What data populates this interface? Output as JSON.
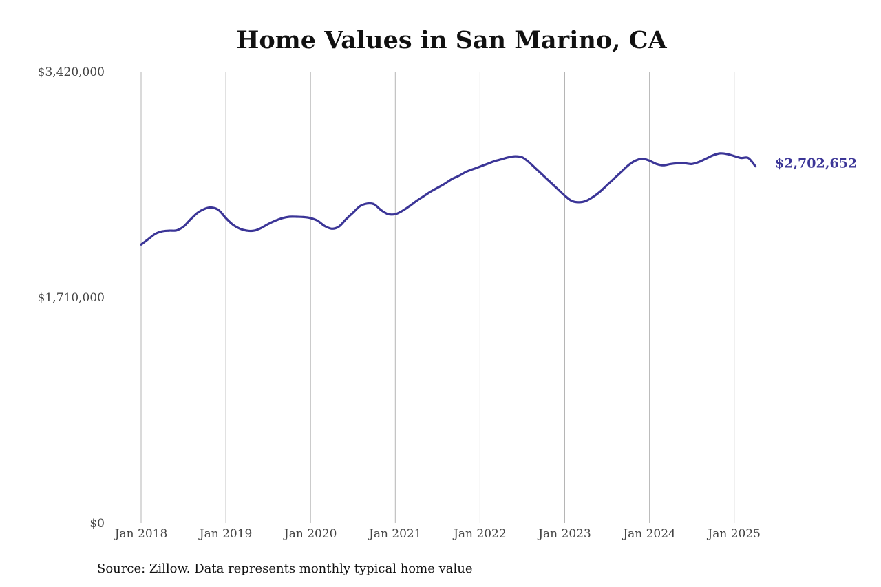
{
  "chart_data": {
    "type": "line",
    "title": "Home Values in San Marino, CA",
    "xlabel": "",
    "ylabel": "",
    "ylim": [
      0,
      3420000
    ],
    "y_ticks": [
      "$0",
      "$1,710,000",
      "$3,420,000"
    ],
    "y_tick_values": [
      0,
      1710000,
      3420000
    ],
    "x_ticks": [
      "Jan 2018",
      "Jan 2019",
      "Jan 2020",
      "Jan 2021",
      "Jan 2022",
      "Jan 2023",
      "Jan 2024",
      "Jan 2025"
    ],
    "x_range": [
      "2018-01",
      "2025-04"
    ],
    "grid": "vertical",
    "line_color": "#3b3597",
    "end_label": "$2,702,652",
    "series": [
      {
        "x": [
          "2018-01",
          "2018-02",
          "2018-03",
          "2018-04",
          "2018-05",
          "2018-06",
          "2018-07",
          "2018-08",
          "2018-09",
          "2018-10",
          "2018-11",
          "2018-12",
          "2019-01",
          "2019-02",
          "2019-03",
          "2019-04",
          "2019-05",
          "2019-06",
          "2019-07",
          "2019-08",
          "2019-09",
          "2019-10",
          "2019-11",
          "2019-12",
          "2020-01",
          "2020-02",
          "2020-03",
          "2020-04",
          "2020-05",
          "2020-06",
          "2020-07",
          "2020-08",
          "2020-09",
          "2020-10",
          "2020-11",
          "2020-12",
          "2021-01",
          "2021-02",
          "2021-03",
          "2021-04",
          "2021-05",
          "2021-06",
          "2021-07",
          "2021-08",
          "2021-09",
          "2021-10",
          "2021-11",
          "2021-12",
          "2022-01",
          "2022-02",
          "2022-03",
          "2022-04",
          "2022-05",
          "2022-06",
          "2022-07",
          "2022-08",
          "2022-09",
          "2022-10",
          "2022-11",
          "2022-12",
          "2023-01",
          "2023-02",
          "2023-03",
          "2023-04",
          "2023-05",
          "2023-06",
          "2023-07",
          "2023-08",
          "2023-09",
          "2023-10",
          "2023-11",
          "2023-12",
          "2024-01",
          "2024-02",
          "2024-03",
          "2024-04",
          "2024-05",
          "2024-06",
          "2024-07",
          "2024-08",
          "2024-09",
          "2024-10",
          "2024-11",
          "2024-12",
          "2025-01",
          "2025-02",
          "2025-03",
          "2025-04"
        ],
        "values": [
          2110000,
          2150000,
          2190000,
          2210000,
          2215000,
          2217000,
          2245000,
          2300000,
          2350000,
          2380000,
          2390000,
          2370000,
          2310000,
          2260000,
          2230000,
          2215000,
          2215000,
          2235000,
          2265000,
          2290000,
          2310000,
          2320000,
          2320000,
          2318000,
          2310000,
          2290000,
          2250000,
          2230000,
          2245000,
          2300000,
          2350000,
          2400000,
          2420000,
          2415000,
          2370000,
          2340000,
          2340000,
          2365000,
          2400000,
          2440000,
          2475000,
          2510000,
          2540000,
          2570000,
          2605000,
          2630000,
          2660000,
          2680000,
          2700000,
          2720000,
          2740000,
          2755000,
          2770000,
          2778000,
          2770000,
          2730000,
          2680000,
          2630000,
          2580000,
          2530000,
          2480000,
          2440000,
          2430000,
          2440000,
          2470000,
          2510000,
          2560000,
          2610000,
          2660000,
          2710000,
          2745000,
          2760000,
          2745000,
          2720000,
          2710000,
          2720000,
          2725000,
          2725000,
          2720000,
          2735000,
          2760000,
          2785000,
          2800000,
          2795000,
          2780000,
          2765000,
          2765000,
          2702652
        ]
      }
    ]
  },
  "footer": {
    "source": "Source: Zillow. Data represents monthly typical home value"
  }
}
